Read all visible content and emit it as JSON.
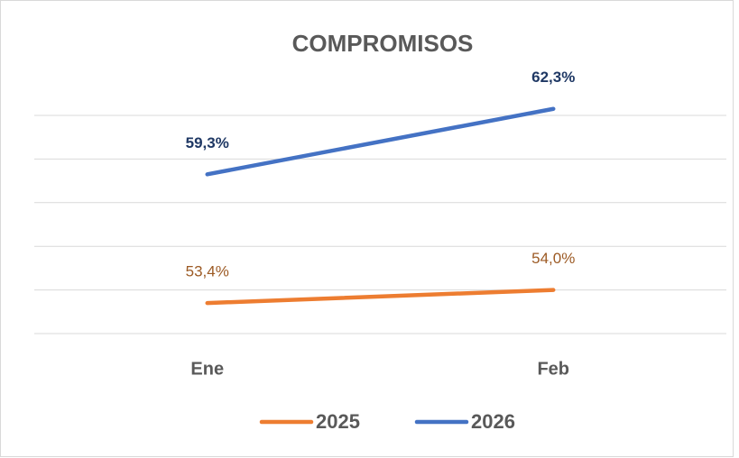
{
  "chart_data": {
    "type": "line",
    "title": "COMPROMISOS",
    "categories": [
      "Ene",
      "Feb"
    ],
    "series": [
      {
        "name": "2025",
        "color": "#ed7d31",
        "label_color": "#9c5a24",
        "values": [
          53.4,
          54.0
        ],
        "value_labels": [
          "53,4%",
          "54,0%"
        ]
      },
      {
        "name": "2026",
        "color": "#4472c4",
        "label_color": "#1f3864",
        "values": [
          59.3,
          62.3
        ],
        "value_labels": [
          "59,3%",
          "62,3%"
        ]
      }
    ],
    "ylim": [
      52,
      62
    ],
    "yticks": [
      52,
      54,
      56,
      58,
      60,
      62
    ],
    "grid": true,
    "legend": "bottom"
  }
}
